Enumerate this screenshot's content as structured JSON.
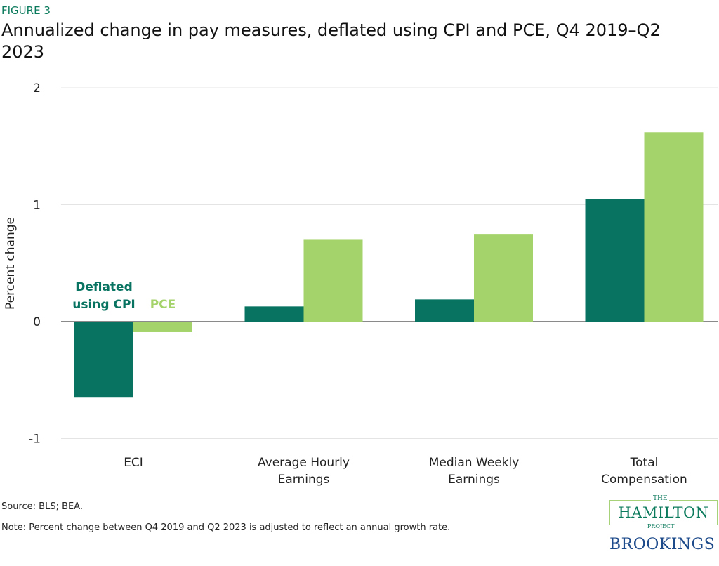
{
  "figure_label": "FIGURE 3",
  "chart_data": {
    "type": "bar",
    "title": "Annualized change in pay measures, deflated using CPI and PCE, Q4 2019–Q2 2023",
    "ylabel": "Percent change",
    "xlabel": "",
    "ylim": [
      -1,
      2
    ],
    "yticks": [
      "-1",
      "0",
      "1",
      "2"
    ],
    "grid": true,
    "categories": [
      [
        "ECI"
      ],
      [
        "Average Hourly",
        "Earnings"
      ],
      [
        "Median Weekly",
        "Earnings"
      ],
      [
        "Total",
        "Compensation"
      ]
    ],
    "series": [
      {
        "name": "Deflated using CPI",
        "name_lines": [
          "Deflated",
          "using CPI"
        ],
        "color": "#077360",
        "values": [
          -0.65,
          0.13,
          0.19,
          1.05
        ]
      },
      {
        "name": "PCE",
        "name_lines": [
          "PCE"
        ],
        "color": "#a5d36b",
        "values": [
          -0.09,
          0.7,
          0.75,
          1.62
        ]
      }
    ],
    "legend": "inline-near-first-bars"
  },
  "source": "Source: BLS; BEA.",
  "note": "Note: Percent change between Q4 2019 and Q2 2023 is adjusted to reflect an annual growth rate.",
  "logos": {
    "hamilton_the": "THE",
    "hamilton_name": "HAMILTON",
    "hamilton_project": "PROJECT",
    "brookings": "BROOKINGS"
  }
}
